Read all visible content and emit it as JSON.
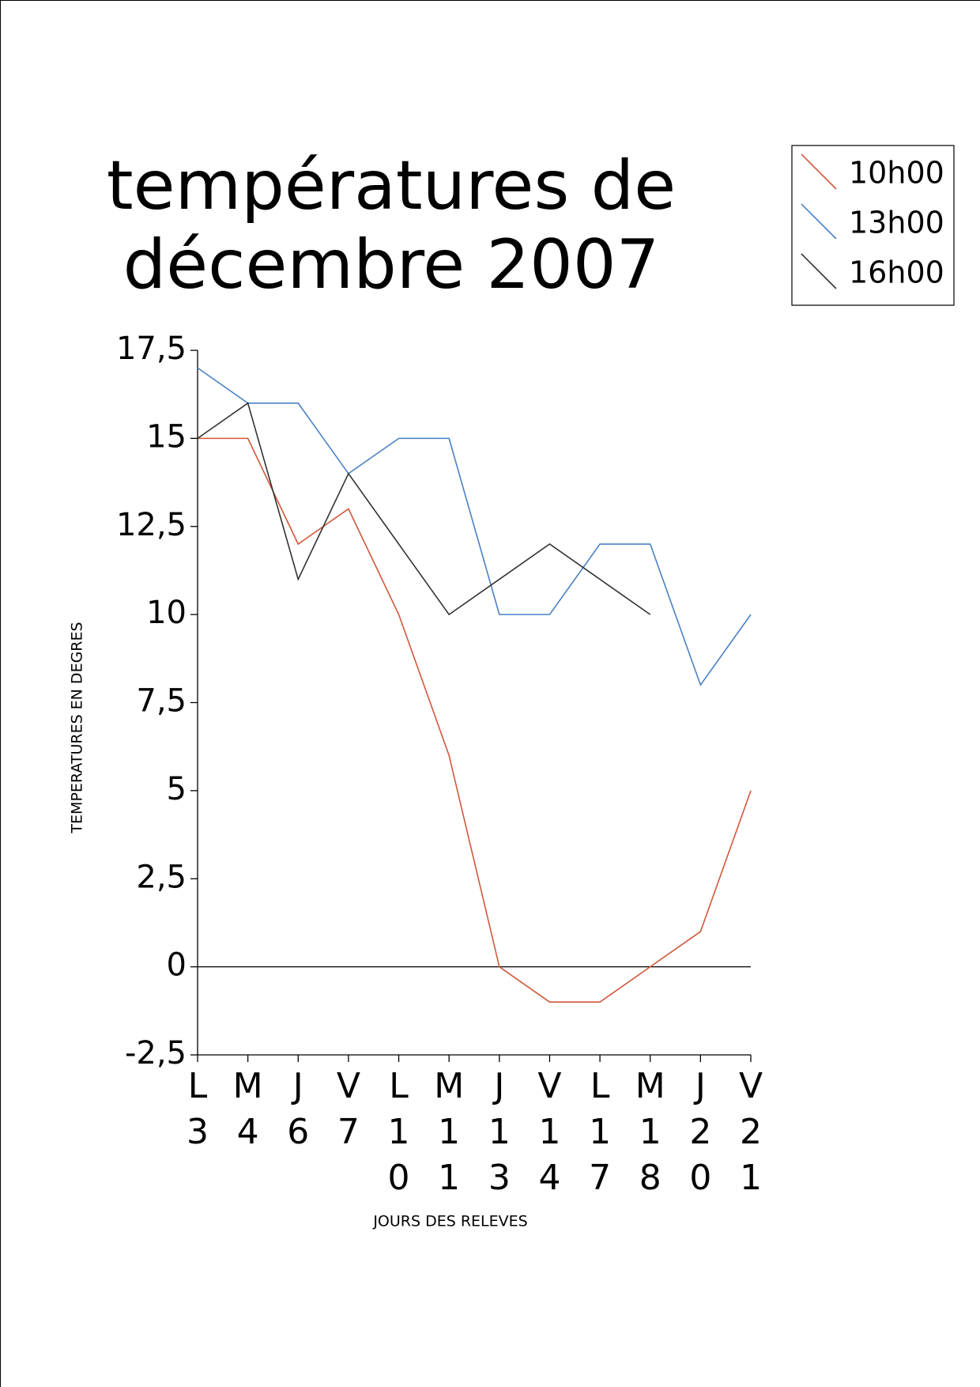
{
  "chart_data": {
    "type": "line",
    "title": "températures  de décembre 2007",
    "x_label": "JOURS DES RELEVES",
    "y_label": "TEMPERATURES EN DEGRES",
    "categories": [
      "L3",
      "M4",
      "J6",
      "V7",
      "L10",
      "M11",
      "J13",
      "V14",
      "L17",
      "M18",
      "J20",
      "V21"
    ],
    "series": [
      {
        "name": "10h00",
        "color": "#d0583a",
        "values": [
          15,
          15,
          12,
          13,
          10,
          6,
          0,
          -1,
          -1,
          0,
          1,
          5
        ]
      },
      {
        "name": "13h00",
        "color": "#4a80c4",
        "values": [
          17,
          16,
          16,
          14,
          15,
          15,
          10,
          10,
          12,
          12,
          8,
          10
        ]
      },
      {
        "name": "16h00",
        "color": "#333333",
        "values": [
          15,
          16,
          11,
          14,
          12,
          10,
          11,
          12,
          11,
          10,
          null,
          null
        ]
      }
    ],
    "ylim": [
      -2.5,
      17.5
    ],
    "yticks": [
      {
        "value": -2.5,
        "label": "-2,5"
      },
      0,
      {
        "value": 2.5,
        "label": "2,5"
      },
      5,
      {
        "value": 7.5,
        "label": "7,5"
      },
      10,
      {
        "value": 12.5,
        "label": "12,5"
      },
      15,
      {
        "value": 17.5,
        "label": "17,5"
      }
    ],
    "legend": "top-right"
  }
}
